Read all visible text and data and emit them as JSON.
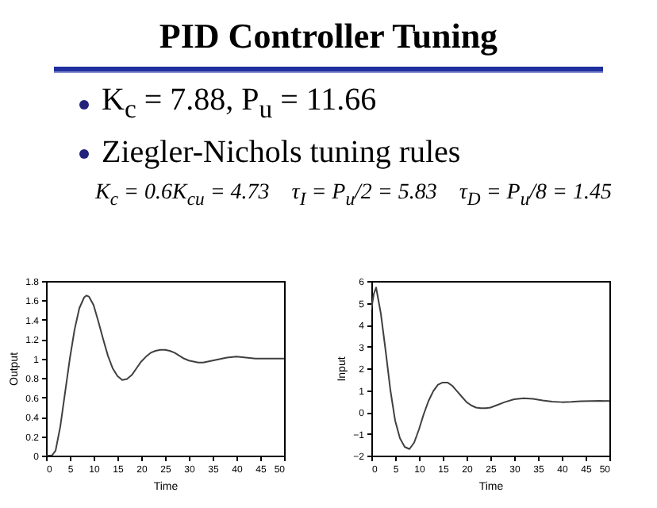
{
  "chart_data": [
    {
      "type": "other",
      "title": "PID Controller Tuning",
      "annotations": [
        "K$_{c}$ = 7.88, P$_{u}$ = 11.66",
        "Ziegler-Nichols tuning rules",
        "K$_{c}$ = 0.6K$_{cu}$ = 4.73    τ$_{I}$ = P$_{u}$/2 = 5.83    τ$_{D}$ = P$_{u}$/8 = 1.45"
      ]
    },
    {
      "type": "line",
      "xlabel": "Time",
      "ylabel": "Output",
      "xlim": [
        0,
        50
      ],
      "xticks": [
        0,
        5,
        10,
        15,
        20,
        25,
        30,
        35,
        40,
        45,
        50
      ],
      "ylim": [
        0,
        1.8
      ],
      "yticks": [
        0,
        0.2,
        0.4,
        0.6,
        0.8,
        1,
        1.2,
        1.4,
        1.6,
        1.8
      ],
      "grid": false,
      "series": [
        {
          "color": "#404040",
          "x": [
            0,
            1,
            1.2,
            2,
            3,
            4,
            5,
            6,
            7,
            8,
            8.5,
            9,
            10,
            11,
            12,
            13,
            14,
            15,
            16,
            17,
            18,
            19,
            20,
            21,
            22,
            23,
            24,
            25,
            26,
            27,
            28,
            29,
            30,
            31,
            32,
            33,
            34,
            35,
            36,
            37,
            38,
            40,
            42,
            44,
            46,
            48,
            50
          ],
          "values": [
            0,
            0,
            0,
            0.05,
            0.3,
            0.65,
            1.0,
            1.3,
            1.52,
            1.63,
            1.65,
            1.64,
            1.55,
            1.38,
            1.2,
            1.03,
            0.9,
            0.82,
            0.78,
            0.79,
            0.83,
            0.9,
            0.97,
            1.02,
            1.06,
            1.08,
            1.09,
            1.09,
            1.08,
            1.06,
            1.03,
            1.0,
            0.98,
            0.97,
            0.96,
            0.96,
            0.97,
            0.98,
            0.99,
            1.0,
            1.01,
            1.02,
            1.01,
            1.0,
            1.0,
            1.0,
            1.0
          ]
        }
      ]
    },
    {
      "type": "line",
      "xlabel": "Time",
      "ylabel": "Input",
      "xlim": [
        0,
        50
      ],
      "xticks": [
        0,
        5,
        10,
        15,
        20,
        25,
        30,
        35,
        40,
        45,
        50
      ],
      "ylim": [
        -2,
        6
      ],
      "yticks": [
        -2,
        -1,
        0,
        1,
        2,
        3,
        4,
        5,
        6
      ],
      "grid": false,
      "series": [
        {
          "color": "#404040",
          "x": [
            0,
            0.5,
            1,
            2,
            3,
            4,
            5,
            6,
            7,
            8,
            9,
            10,
            11,
            12,
            13,
            14,
            15,
            16,
            17,
            18,
            19,
            20,
            21,
            22,
            23,
            24,
            25,
            26,
            28,
            30,
            32,
            34,
            36,
            38,
            40,
            42,
            44,
            46,
            48,
            50
          ],
          "values": [
            4.7,
            5.4,
            5.7,
            4.5,
            2.8,
            1.0,
            -0.4,
            -1.2,
            -1.6,
            -1.7,
            -1.4,
            -0.8,
            -0.1,
            0.5,
            0.95,
            1.25,
            1.35,
            1.35,
            1.2,
            0.95,
            0.7,
            0.45,
            0.3,
            0.2,
            0.17,
            0.17,
            0.2,
            0.28,
            0.45,
            0.58,
            0.63,
            0.6,
            0.53,
            0.47,
            0.45,
            0.46,
            0.49,
            0.5,
            0.51,
            0.5
          ]
        }
      ]
    }
  ]
}
